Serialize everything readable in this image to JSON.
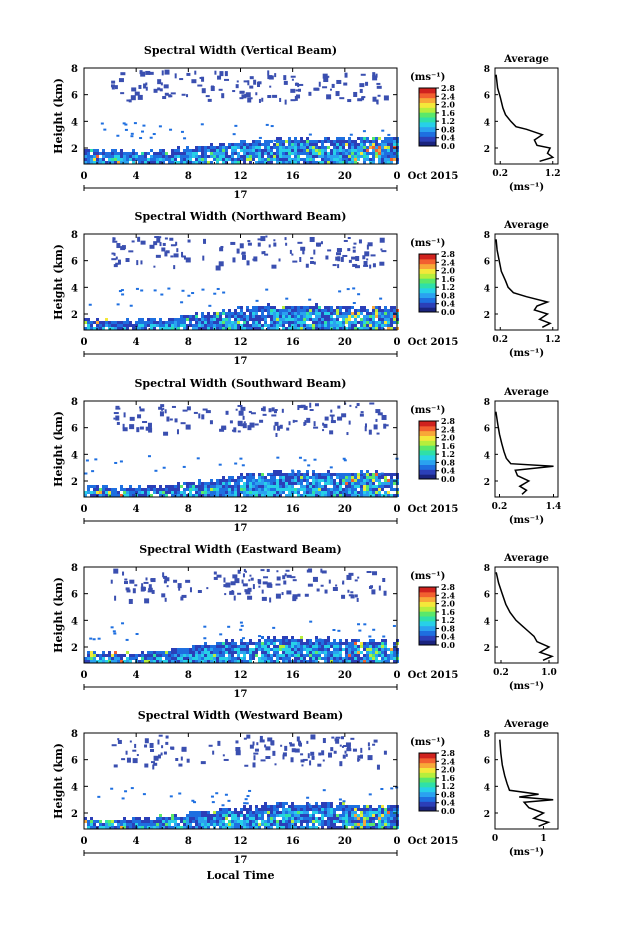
{
  "figure": {
    "xlabel": "Local Time",
    "date_label": "Oct 2015",
    "day_label": "17",
    "cbar_unit": "(ms⁻¹)",
    "avg_title": "Average",
    "avg_xlabel": "(ms⁻¹)"
  },
  "colors": {
    "colormap": [
      "#1a237e",
      "#2b3fb8",
      "#1e6fe0",
      "#2aa2f0",
      "#27d0e8",
      "#2fe0a8",
      "#5ae86a",
      "#b6ee3c",
      "#f4e83a",
      "#f8a838",
      "#f26030",
      "#d0221e"
    ],
    "sparse_cloud": "#3a4fb0"
  },
  "chart_data": [
    {
      "type": "heatmap",
      "title": "Spectral Width (Vertical Beam)",
      "ylabel": "Height (km)",
      "x_ticks": [
        "0",
        "4",
        "8",
        "12",
        "16",
        "20",
        "0"
      ],
      "y_ticks": [
        "2",
        "4",
        "6",
        "8"
      ],
      "x_range": [
        0,
        24
      ],
      "y_range": [
        0.8,
        8
      ],
      "colorbar": {
        "range": [
          0,
          2.8
        ],
        "ticks": [
          "0.0",
          "0.4",
          "0.8",
          "1.2",
          "1.6",
          "2.0",
          "2.4",
          "2.8"
        ]
      },
      "boundary_layer_top_km": [
        [
          0,
          2.0
        ],
        [
          2,
          1.9
        ],
        [
          6,
          1.9
        ],
        [
          10,
          2.4
        ],
        [
          14,
          2.8
        ],
        [
          18,
          2.8
        ],
        [
          22,
          2.9
        ],
        [
          24,
          2.9
        ]
      ]
    },
    {
      "type": "line",
      "title": "Average",
      "xlabel": "(ms⁻¹)",
      "x_ticks": [
        "0.2",
        "1.2"
      ],
      "x_range": [
        0.1,
        1.3
      ],
      "y_ticks": [
        "2",
        "4",
        "6",
        "8"
      ],
      "y_range": [
        0.8,
        8
      ],
      "profile": [
        [
          0.95,
          1.0
        ],
        [
          1.2,
          1.3
        ],
        [
          1.1,
          1.6
        ],
        [
          1.15,
          2.0
        ],
        [
          0.9,
          2.2
        ],
        [
          0.85,
          2.6
        ],
        [
          1.0,
          3.0
        ],
        [
          0.7,
          3.4
        ],
        [
          0.5,
          3.6
        ],
        [
          0.4,
          4.0
        ],
        [
          0.3,
          4.5
        ],
        [
          0.25,
          5.0
        ],
        [
          0.2,
          5.8
        ],
        [
          0.15,
          6.5
        ],
        [
          0.12,
          7.5
        ]
      ]
    },
    {
      "type": "heatmap",
      "title": "Spectral Width (Northward Beam)",
      "ylabel": "Height (km)",
      "x_ticks": [
        "0",
        "4",
        "8",
        "12",
        "16",
        "20",
        "0"
      ],
      "y_ticks": [
        "2",
        "4",
        "6",
        "8"
      ],
      "x_range": [
        0,
        24
      ],
      "y_range": [
        0.8,
        8
      ],
      "colorbar": {
        "range": [
          0,
          2.8
        ],
        "ticks": [
          "0.0",
          "0.4",
          "0.8",
          "1.2",
          "1.6",
          "2.0",
          "2.4",
          "2.8"
        ]
      },
      "boundary_layer_top_km": [
        [
          0,
          1.8
        ],
        [
          2,
          1.7
        ],
        [
          6,
          1.7
        ],
        [
          10,
          2.3
        ],
        [
          14,
          2.7
        ],
        [
          18,
          2.7
        ],
        [
          22,
          2.6
        ],
        [
          24,
          2.6
        ]
      ]
    },
    {
      "type": "line",
      "title": "Average",
      "xlabel": "(ms⁻¹)",
      "x_ticks": [
        "0.2",
        "1.2"
      ],
      "x_range": [
        0.1,
        1.3
      ],
      "y_ticks": [
        "2",
        "4",
        "6",
        "8"
      ],
      "y_range": [
        0.8,
        8
      ],
      "profile": [
        [
          1.0,
          1.0
        ],
        [
          1.15,
          1.3
        ],
        [
          0.95,
          1.6
        ],
        [
          1.1,
          2.0
        ],
        [
          0.85,
          2.3
        ],
        [
          0.9,
          2.6
        ],
        [
          1.1,
          2.9
        ],
        [
          0.7,
          3.3
        ],
        [
          0.45,
          3.6
        ],
        [
          0.35,
          4.0
        ],
        [
          0.3,
          4.5
        ],
        [
          0.22,
          5.2
        ],
        [
          0.18,
          6.0
        ],
        [
          0.14,
          6.8
        ],
        [
          0.12,
          7.6
        ]
      ]
    },
    {
      "type": "heatmap",
      "title": "Spectral Width (Southward Beam)",
      "ylabel": "Height (km)",
      "x_ticks": [
        "0",
        "4",
        "8",
        "12",
        "16",
        "20",
        "0"
      ],
      "y_ticks": [
        "2",
        "4",
        "6",
        "8"
      ],
      "x_range": [
        0,
        24
      ],
      "y_range": [
        0.8,
        8
      ],
      "colorbar": {
        "range": [
          0,
          2.8
        ],
        "ticks": [
          "0.0",
          "0.4",
          "0.8",
          "1.2",
          "1.6",
          "2.0",
          "2.4",
          "2.8"
        ]
      },
      "boundary_layer_top_km": [
        [
          0,
          1.7
        ],
        [
          2,
          1.6
        ],
        [
          6,
          1.7
        ],
        [
          10,
          2.3
        ],
        [
          14,
          2.8
        ],
        [
          18,
          2.8
        ],
        [
          22,
          2.8
        ],
        [
          24,
          2.8
        ]
      ]
    },
    {
      "type": "line",
      "title": "Average",
      "xlabel": "(ms⁻¹)",
      "x_ticks": [
        "0.2",
        "1.4"
      ],
      "x_range": [
        0.1,
        1.5
      ],
      "y_ticks": [
        "2",
        "4",
        "6",
        "8"
      ],
      "y_range": [
        0.8,
        8
      ],
      "profile": [
        [
          0.7,
          1.0
        ],
        [
          0.8,
          1.3
        ],
        [
          0.65,
          1.6
        ],
        [
          0.85,
          2.0
        ],
        [
          0.6,
          2.4
        ],
        [
          0.55,
          2.8
        ],
        [
          1.4,
          3.1
        ],
        [
          0.45,
          3.3
        ],
        [
          0.35,
          3.7
        ],
        [
          0.3,
          4.2
        ],
        [
          0.25,
          4.8
        ],
        [
          0.2,
          5.5
        ],
        [
          0.16,
          6.3
        ],
        [
          0.12,
          7.2
        ]
      ]
    },
    {
      "type": "heatmap",
      "title": "Spectral Width (Eastward Beam)",
      "ylabel": "Height (km)",
      "x_ticks": [
        "0",
        "4",
        "8",
        "12",
        "16",
        "20",
        "0"
      ],
      "y_ticks": [
        "2",
        "4",
        "6",
        "8"
      ],
      "x_range": [
        0,
        24
      ],
      "y_range": [
        0.8,
        8
      ],
      "colorbar": {
        "range": [
          0,
          2.8
        ],
        "ticks": [
          "0.0",
          "0.4",
          "0.8",
          "1.2",
          "1.6",
          "2.0",
          "2.4",
          "2.8"
        ]
      },
      "boundary_layer_top_km": [
        [
          0,
          1.8
        ],
        [
          2,
          1.7
        ],
        [
          6,
          1.8
        ],
        [
          10,
          2.4
        ],
        [
          14,
          2.8
        ],
        [
          18,
          2.7
        ],
        [
          22,
          2.6
        ],
        [
          24,
          2.6
        ]
      ]
    },
    {
      "type": "line",
      "title": "Average",
      "xlabel": "(ms⁻¹)",
      "x_ticks": [
        "0.2",
        "1.0"
      ],
      "x_range": [
        0.1,
        1.15
      ],
      "y_ticks": [
        "2",
        "4",
        "6",
        "8"
      ],
      "y_range": [
        0.8,
        8
      ],
      "profile": [
        [
          0.9,
          1.0
        ],
        [
          1.05,
          1.3
        ],
        [
          0.85,
          1.6
        ],
        [
          1.0,
          2.0
        ],
        [
          0.8,
          2.4
        ],
        [
          0.75,
          2.8
        ],
        [
          0.65,
          3.2
        ],
        [
          0.55,
          3.6
        ],
        [
          0.45,
          4.0
        ],
        [
          0.35,
          4.6
        ],
        [
          0.28,
          5.2
        ],
        [
          0.22,
          6.0
        ],
        [
          0.16,
          6.8
        ],
        [
          0.12,
          7.6
        ]
      ]
    },
    {
      "type": "heatmap",
      "title": "Spectral Width (Westward Beam)",
      "ylabel": "Height (km)",
      "x_ticks": [
        "0",
        "4",
        "8",
        "12",
        "16",
        "20",
        "0"
      ],
      "y_ticks": [
        "2",
        "4",
        "6",
        "8"
      ],
      "x_range": [
        0,
        24
      ],
      "y_range": [
        0.8,
        8
      ],
      "colorbar": {
        "range": [
          0,
          2.8
        ],
        "ticks": [
          "0.0",
          "0.4",
          "0.8",
          "1.2",
          "1.6",
          "2.0",
          "2.4",
          "2.8"
        ]
      },
      "boundary_layer_top_km": [
        [
          0,
          1.7
        ],
        [
          2,
          1.6
        ],
        [
          6,
          1.8
        ],
        [
          10,
          2.4
        ],
        [
          14,
          2.8
        ],
        [
          18,
          2.8
        ],
        [
          22,
          2.7
        ],
        [
          24,
          2.7
        ]
      ]
    },
    {
      "type": "line",
      "title": "Average",
      "xlabel": "(ms⁻¹)",
      "x_ticks": [
        "0",
        "1"
      ],
      "x_range": [
        0,
        1.3
      ],
      "y_ticks": [
        "2",
        "4",
        "6",
        "8"
      ],
      "y_range": [
        0.8,
        8
      ],
      "profile": [
        [
          0.9,
          1.0
        ],
        [
          1.1,
          1.3
        ],
        [
          0.8,
          1.6
        ],
        [
          1.0,
          2.0
        ],
        [
          0.7,
          2.4
        ],
        [
          0.6,
          2.8
        ],
        [
          1.2,
          3.0
        ],
        [
          0.5,
          3.2
        ],
        [
          0.9,
          3.4
        ],
        [
          0.3,
          3.7
        ],
        [
          0.25,
          4.2
        ],
        [
          0.2,
          4.8
        ],
        [
          0.15,
          5.6
        ],
        [
          0.12,
          6.5
        ],
        [
          0.1,
          7.5
        ]
      ]
    }
  ]
}
